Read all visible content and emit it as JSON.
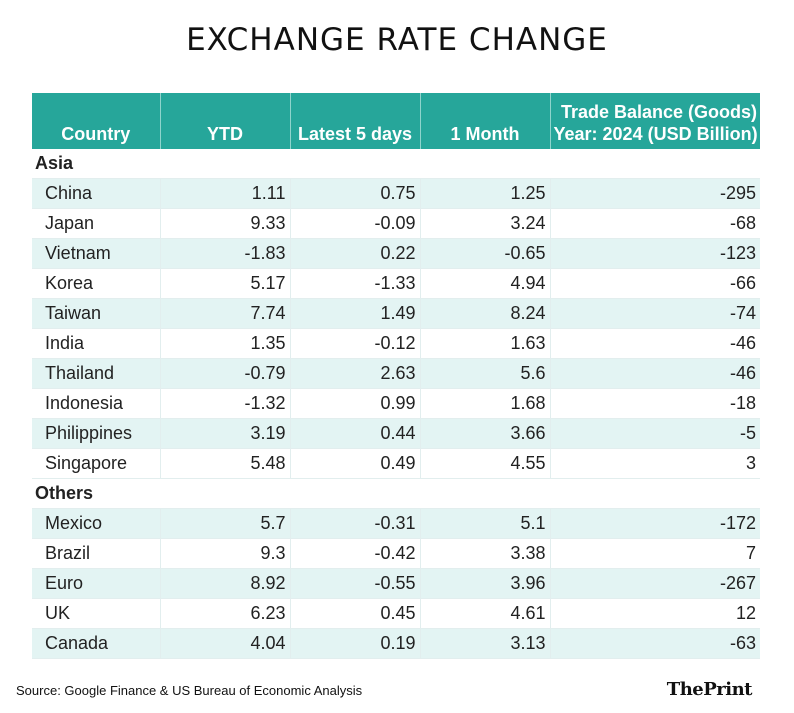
{
  "title": "EXCHANGE RATE CHANGE",
  "chart_data": {
    "type": "table",
    "title": "EXCHANGE RATE CHANGE",
    "columns": [
      "Country",
      "YTD",
      "Latest 5 days",
      "1 Month",
      "Trade Balance (Goods)",
      "Year: 2024 (USD Billion)"
    ],
    "sections": [
      {
        "name": "Asia",
        "rows": [
          {
            "country": "China",
            "ytd": "1.11",
            "five_days": "0.75",
            "one_month": "1.25",
            "trade_balance": "-295"
          },
          {
            "country": "Japan",
            "ytd": "9.33",
            "five_days": "-0.09",
            "one_month": "3.24",
            "trade_balance": "-68"
          },
          {
            "country": "Vietnam",
            "ytd": "-1.83",
            "five_days": "0.22",
            "one_month": "-0.65",
            "trade_balance": "-123"
          },
          {
            "country": "Korea",
            "ytd": "5.17",
            "five_days": "-1.33",
            "one_month": "4.94",
            "trade_balance": "-66"
          },
          {
            "country": "Taiwan",
            "ytd": "7.74",
            "five_days": "1.49",
            "one_month": "8.24",
            "trade_balance": "-74"
          },
          {
            "country": "India",
            "ytd": "1.35",
            "five_days": "-0.12",
            "one_month": "1.63",
            "trade_balance": "-46"
          },
          {
            "country": "Thailand",
            "ytd": "-0.79",
            "five_days": "2.63",
            "one_month": "5.6",
            "trade_balance": "-46"
          },
          {
            "country": "Indonesia",
            "ytd": "-1.32",
            "five_days": "0.99",
            "one_month": "1.68",
            "trade_balance": "-18"
          },
          {
            "country": "Philippines",
            "ytd": "3.19",
            "five_days": "0.44",
            "one_month": "3.66",
            "trade_balance": "-5"
          },
          {
            "country": "Singapore",
            "ytd": "5.48",
            "five_days": "0.49",
            "one_month": "4.55",
            "trade_balance": "3"
          }
        ]
      },
      {
        "name": "Others",
        "rows": [
          {
            "country": "Mexico",
            "ytd": "5.7",
            "five_days": "-0.31",
            "one_month": "5.1",
            "trade_balance": "-172"
          },
          {
            "country": "Brazil",
            "ytd": "9.3",
            "five_days": "-0.42",
            "one_month": "3.38",
            "trade_balance": "7"
          },
          {
            "country": "Euro",
            "ytd": "8.92",
            "five_days": "-0.55",
            "one_month": "3.96",
            "trade_balance": "-267"
          },
          {
            "country": "UK",
            "ytd": "6.23",
            "five_days": "0.45",
            "one_month": "4.61",
            "trade_balance": "12"
          },
          {
            "country": "Canada",
            "ytd": "4.04",
            "five_days": "0.19",
            "one_month": "3.13",
            "trade_balance": "-63"
          }
        ]
      }
    ]
  },
  "source": "Source: Google Finance & US Bureau of Economic Analysis",
  "logo": "ThePrint",
  "colors": {
    "header": "#26a69a",
    "stripe": "#e3f4f3"
  }
}
